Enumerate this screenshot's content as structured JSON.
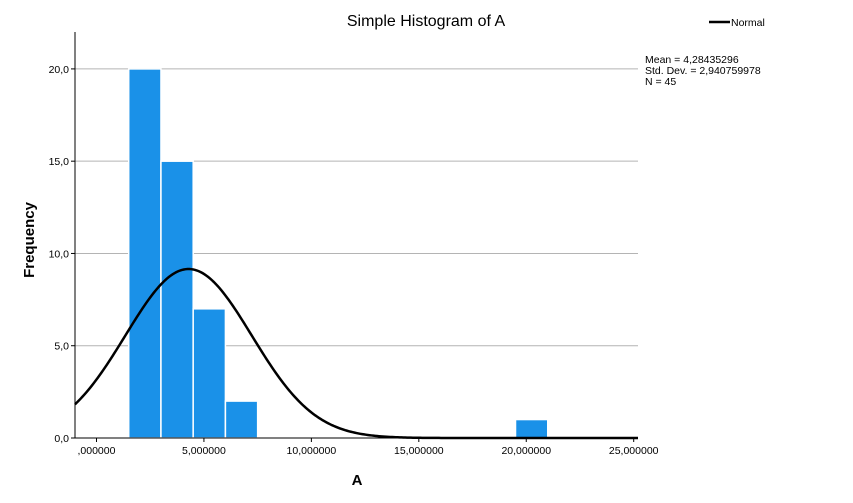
{
  "chart_data": {
    "type": "bar",
    "title": "Simple Histogram of A",
    "xlabel": "A",
    "ylabel": "Frequency",
    "xlim": [
      -1000000,
      25200000
    ],
    "ylim": [
      0,
      22
    ],
    "x_ticks": [
      0,
      5000000,
      10000000,
      15000000,
      20000000,
      25000000
    ],
    "x_tick_labels": [
      ",000000",
      "5,000000",
      "10,000000",
      "15,000000",
      "20,000000",
      "25,000000"
    ],
    "y_ticks": [
      0,
      5,
      10,
      15,
      20
    ],
    "y_tick_labels": [
      "0,0",
      "5,0",
      "10,0",
      "15,0",
      "20,0"
    ],
    "grid": "horizontal",
    "bar_color": "#1a91e8",
    "bins": [
      {
        "x0": 1500000,
        "x1": 3000000,
        "count": 20
      },
      {
        "x0": 3000000,
        "x1": 4500000,
        "count": 15
      },
      {
        "x0": 4500000,
        "x1": 6000000,
        "count": 7
      },
      {
        "x0": 6000000,
        "x1": 7500000,
        "count": 2
      },
      {
        "x0": 19500000,
        "x1": 21000000,
        "count": 1
      }
    ],
    "normal_curve": {
      "label": "Normal",
      "mean": 4.28435296,
      "std_dev": 2.940759978,
      "n": 45,
      "color": "#000000"
    },
    "legend_position": "top-right",
    "stats_text": {
      "mean": "Mean = 4,28435296",
      "std_dev": "Std. Dev. = 2,940759978",
      "n": "N = 45"
    }
  }
}
